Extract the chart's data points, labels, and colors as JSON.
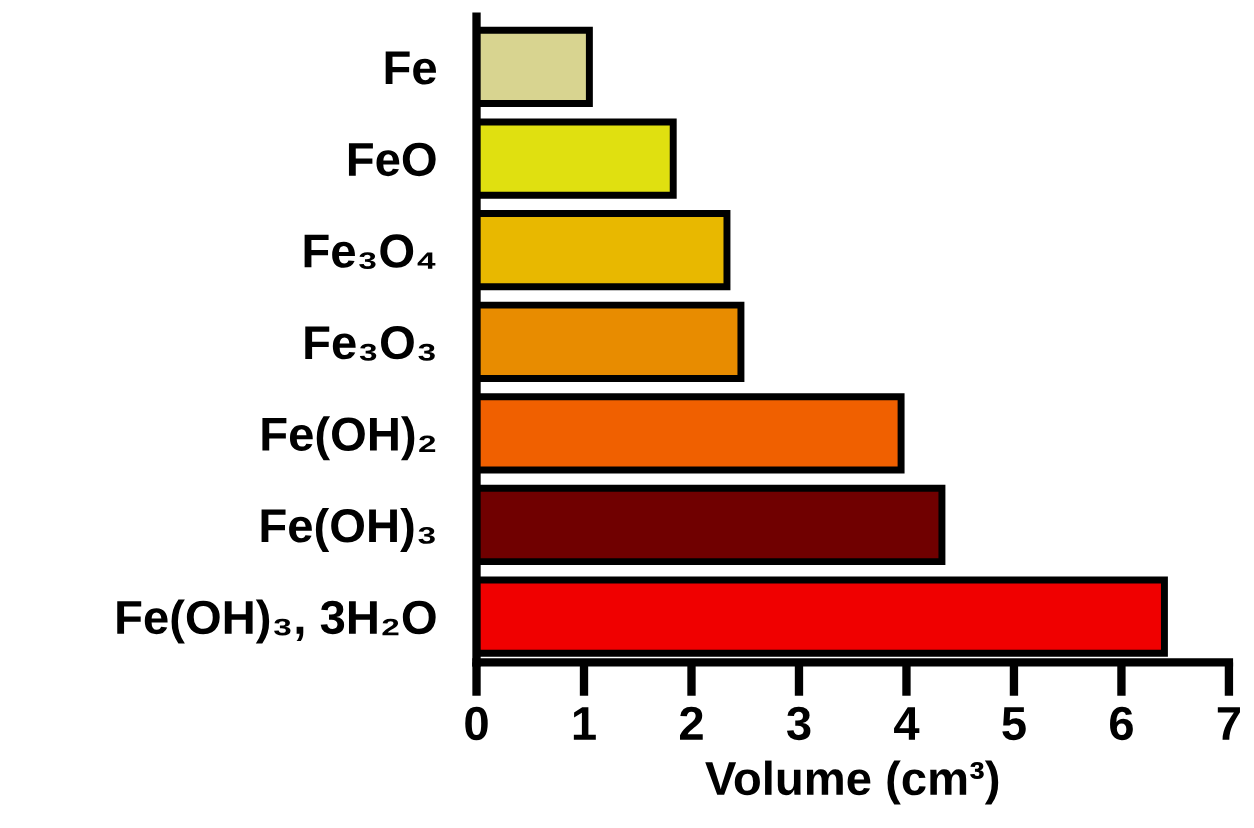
{
  "chart_data": {
    "type": "bar",
    "orientation": "horizontal",
    "xlabel": "Volume (cm³)",
    "categories": [
      "Fe",
      "FeO",
      "Fe₃O₄",
      "Fe₃O₃",
      "Fe(OH)₂",
      "Fe(OH)₃",
      "Fe(OH)₃, 3H₂O"
    ],
    "values": [
      1.05,
      1.83,
      2.33,
      2.46,
      3.95,
      4.33,
      6.4
    ],
    "colors": [
      "#d8d490",
      "#e0e010",
      "#e8b800",
      "#e88c00",
      "#f06000",
      "#700000",
      "#f00000"
    ],
    "xlim": [
      0,
      7
    ],
    "xticks": [
      0,
      1,
      2,
      3,
      4,
      5,
      6,
      7
    ],
    "grid": false,
    "legend": false
  }
}
